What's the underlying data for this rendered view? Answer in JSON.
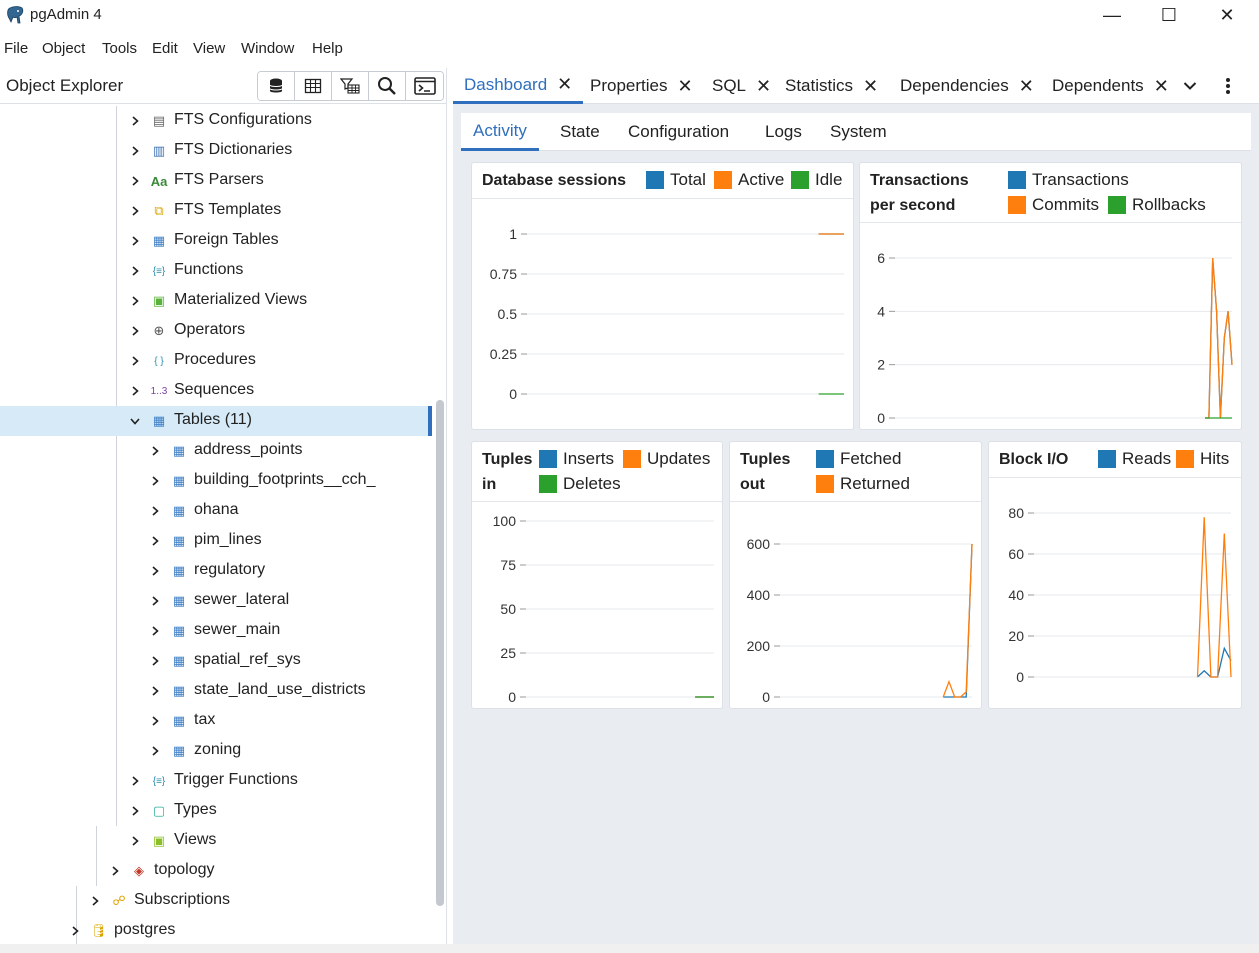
{
  "window": {
    "title": "pgAdmin 4",
    "controls": {
      "minimize": "—",
      "maximize": "☐",
      "close": "✕"
    }
  },
  "menu": [
    "File",
    "Object",
    "Tools",
    "Edit",
    "View",
    "Window",
    "Help"
  ],
  "object_explorer": {
    "title": "Object Explorer",
    "toolbar": [
      "database-icon",
      "table-grid-icon",
      "filter-table-icon",
      "search-icon",
      "terminal-icon"
    ],
    "tree": [
      {
        "label": "FTS Configurations",
        "icon": "fts-config-icon",
        "expanded": false
      },
      {
        "label": "FTS Dictionaries",
        "icon": "fts-dictionary-icon",
        "expanded": false
      },
      {
        "label": "FTS Parsers",
        "icon": "fts-parser-icon",
        "expanded": false
      },
      {
        "label": "FTS Templates",
        "icon": "fts-template-icon",
        "expanded": false
      },
      {
        "label": "Foreign Tables",
        "icon": "foreign-table-icon",
        "expanded": false
      },
      {
        "label": "Functions",
        "icon": "function-icon",
        "expanded": false
      },
      {
        "label": "Materialized Views",
        "icon": "materialized-view-icon",
        "expanded": false
      },
      {
        "label": "Operators",
        "icon": "operator-icon",
        "expanded": false
      },
      {
        "label": "Procedures",
        "icon": "procedure-icon",
        "expanded": false
      },
      {
        "label": "Sequences",
        "icon": "sequence-icon",
        "expanded": false
      },
      {
        "label": "Tables (11)",
        "icon": "table-icon",
        "expanded": true,
        "selected": true
      },
      {
        "label": "address_points",
        "icon": "table-icon",
        "expanded": false
      },
      {
        "label": "building_footprints__cch_",
        "icon": "table-icon",
        "expanded": false
      },
      {
        "label": "ohana",
        "icon": "table-icon",
        "expanded": false
      },
      {
        "label": "pim_lines",
        "icon": "table-icon",
        "expanded": false
      },
      {
        "label": "regulatory",
        "icon": "table-icon",
        "expanded": false
      },
      {
        "label": "sewer_lateral",
        "icon": "table-icon",
        "expanded": false
      },
      {
        "label": "sewer_main",
        "icon": "table-icon",
        "expanded": false
      },
      {
        "label": "spatial_ref_sys",
        "icon": "table-icon",
        "expanded": false
      },
      {
        "label": "state_land_use_districts",
        "icon": "table-icon",
        "expanded": false
      },
      {
        "label": "tax",
        "icon": "table-icon",
        "expanded": false
      },
      {
        "label": "zoning",
        "icon": "table-icon",
        "expanded": false
      },
      {
        "label": "Trigger Functions",
        "icon": "trigger-function-icon",
        "expanded": false
      },
      {
        "label": "Types",
        "icon": "type-icon",
        "expanded": false
      },
      {
        "label": "Views",
        "icon": "view-icon",
        "expanded": false
      },
      {
        "label": "topology",
        "icon": "topology-icon",
        "expanded": false
      },
      {
        "label": "Subscriptions",
        "icon": "subscription-icon",
        "expanded": false
      },
      {
        "label": "postgres",
        "icon": "database-icon",
        "expanded": false
      }
    ]
  },
  "main_tabs": [
    {
      "label": "Dashboard",
      "active": true
    },
    {
      "label": "Properties"
    },
    {
      "label": "SQL"
    },
    {
      "label": "Statistics"
    },
    {
      "label": "Dependencies"
    },
    {
      "label": "Dependents"
    }
  ],
  "sub_tabs": [
    {
      "label": "Activity",
      "active": true
    },
    {
      "label": "State"
    },
    {
      "label": "Configuration"
    },
    {
      "label": "Logs"
    },
    {
      "label": "System"
    }
  ],
  "colors": {
    "blue": "#1f77b4",
    "orange": "#ff7f0e",
    "green": "#2ca02c",
    "accent": "#2f6fbd"
  },
  "chart_data": [
    {
      "id": "sessions",
      "type": "line",
      "title": "Database sessions",
      "legend": [
        "Total",
        "Active",
        "Idle"
      ],
      "yticks": [
        "1",
        "0.75",
        "0.5",
        "0.25",
        "0"
      ],
      "ylim": [
        0,
        1
      ],
      "series": [
        {
          "name": "Total",
          "values": [
            1,
            1,
            1
          ]
        },
        {
          "name": "Active",
          "values": [
            1,
            1,
            1
          ]
        },
        {
          "name": "Idle",
          "values": [
            0,
            0,
            0
          ]
        }
      ]
    },
    {
      "id": "tps",
      "type": "line",
      "title_line1": "Transactions",
      "title_line2": "per second",
      "legend": [
        "Transactions",
        "Commits",
        "Rollbacks"
      ],
      "yticks": [
        "6",
        "4",
        "2",
        "0"
      ],
      "ylim": [
        0,
        6
      ],
      "series": [
        {
          "name": "Transactions",
          "values": [
            0,
            0,
            6,
            4,
            0,
            3,
            4,
            2
          ]
        },
        {
          "name": "Commits",
          "values": [
            0,
            0,
            6,
            4,
            0,
            3,
            4,
            2
          ]
        },
        {
          "name": "Rollbacks",
          "values": [
            0,
            0,
            0,
            0,
            0,
            0,
            0,
            0
          ]
        }
      ]
    },
    {
      "id": "tuples_in",
      "type": "line",
      "title_line1": "Tuples",
      "title_line2": "in",
      "legend": [
        "Inserts",
        "Updates",
        "Deletes"
      ],
      "yticks": [
        "100",
        "75",
        "50",
        "25",
        "0"
      ],
      "ylim": [
        0,
        100
      ],
      "series": [
        {
          "name": "Inserts",
          "values": [
            0,
            0,
            0
          ]
        },
        {
          "name": "Updates",
          "values": [
            0,
            0,
            0
          ]
        },
        {
          "name": "Deletes",
          "values": [
            0,
            0,
            0
          ]
        }
      ]
    },
    {
      "id": "tuples_out",
      "type": "line",
      "title_line1": "Tuples",
      "title_line2": "out",
      "legend": [
        "Fetched",
        "Returned"
      ],
      "yticks": [
        "600",
        "400",
        "200",
        "0"
      ],
      "ylim": [
        0,
        600
      ],
      "series": [
        {
          "name": "Fetched",
          "values": [
            0,
            0,
            0,
            0,
            0,
            600
          ]
        },
        {
          "name": "Returned",
          "values": [
            0,
            60,
            0,
            0,
            20,
            600
          ]
        }
      ]
    },
    {
      "id": "block_io",
      "type": "line",
      "title": "Block I/O",
      "legend": [
        "Reads",
        "Hits"
      ],
      "yticks": [
        "80",
        "60",
        "40",
        "20",
        "0"
      ],
      "ylim": [
        0,
        80
      ],
      "series": [
        {
          "name": "Reads",
          "values": [
            0,
            3,
            0,
            0,
            14,
            8
          ]
        },
        {
          "name": "Hits",
          "values": [
            0,
            78,
            0,
            0,
            70,
            0
          ]
        }
      ]
    }
  ]
}
